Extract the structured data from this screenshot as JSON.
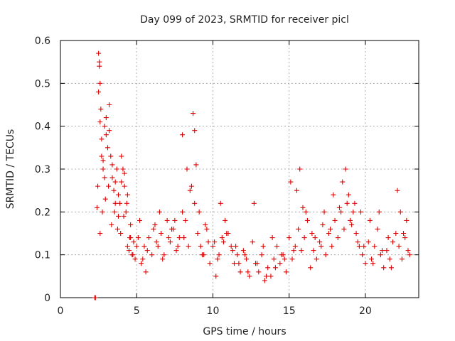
{
  "chart_data": {
    "type": "scatter",
    "title": "Day 099 of 2023, SRMTID for receiver picl",
    "xlabel": "GPS time / hours",
    "ylabel": "SRMTID / TECUs",
    "xlim": [
      0,
      23.5
    ],
    "ylim": [
      0,
      0.6
    ],
    "x_ticks": [
      0,
      5,
      10,
      15,
      20
    ],
    "x_tick_labels": [
      "0",
      "5",
      "10",
      "15",
      "20"
    ],
    "y_ticks": [
      0,
      0.1,
      0.2,
      0.3,
      0.4,
      0.5,
      0.6
    ],
    "y_tick_labels": [
      "0",
      "0.1",
      "0.2",
      "0.3",
      "0.4",
      "0.5",
      "0.6"
    ],
    "grid": true,
    "marker": "plus",
    "color": "#e00000",
    "series": [
      {
        "name": "SRMTID",
        "x": [
          2.25,
          2.3,
          2.4,
          2.45,
          2.5,
          2.55,
          2.6,
          2.65,
          2.7,
          2.8,
          2.9,
          3.0,
          3.1,
          3.2,
          3.3,
          3.4,
          3.5,
          3.6,
          3.7,
          3.8,
          3.9,
          4.0,
          4.1,
          4.2,
          4.3,
          4.4,
          4.5,
          4.6,
          4.7,
          4.8,
          4.9,
          5.0,
          5.2,
          5.4,
          5.6,
          5.8,
          6.0,
          6.2,
          6.4,
          6.6,
          6.8,
          7.0,
          7.2,
          7.4,
          7.6,
          7.8,
          8.0,
          8.2,
          8.4,
          8.6,
          8.8,
          9.0,
          9.2,
          9.4,
          9.6,
          9.8,
          10.0,
          10.2,
          10.4,
          10.6,
          10.8,
          11.0,
          11.2,
          11.4,
          11.6,
          11.8,
          12.0,
          12.2,
          12.4,
          12.6,
          12.8,
          13.0,
          13.2,
          13.4,
          13.6,
          13.8,
          14.0,
          14.2,
          14.4,
          14.6,
          14.8,
          15.0,
          15.2,
          15.4,
          15.6,
          15.8,
          16.0,
          16.2,
          16.4,
          16.6,
          16.8,
          17.0,
          17.2,
          17.4,
          17.6,
          17.8,
          18.0,
          18.2,
          18.4,
          18.6,
          18.8,
          19.0,
          19.2,
          19.4,
          19.6,
          19.8,
          20.0,
          20.2,
          20.4,
          20.6,
          20.8,
          21.0,
          21.2,
          21.4,
          21.6,
          21.8,
          22.0,
          22.2,
          22.4,
          22.6,
          22.8,
          2.5,
          2.55,
          2.6,
          2.7,
          2.8,
          2.9,
          3.0,
          3.2,
          3.4,
          3.6,
          3.8,
          4.0,
          4.2,
          4.4,
          4.6,
          5.1,
          5.5,
          6.1,
          6.5,
          7.1,
          7.5,
          8.0,
          8.3,
          8.5,
          8.7,
          8.8,
          9.1,
          9.5,
          10.1,
          10.5,
          10.9,
          11.5,
          12.1,
          12.7,
          13.3,
          13.9,
          14.5,
          15.1,
          15.5,
          15.7,
          16.1,
          16.7,
          17.3,
          17.9,
          18.5,
          18.7,
          18.9,
          19.3,
          19.7,
          20.3,
          20.9,
          21.5,
          22.1,
          22.3,
          22.5,
          22.9,
          2.6,
          2.75,
          2.95,
          3.15,
          3.35,
          3.55,
          3.75,
          3.95,
          4.15,
          4.35,
          4.55,
          4.75,
          5.3,
          5.7,
          6.3,
          6.7,
          7.3,
          7.7,
          8.1,
          8.9,
          9.3,
          9.7,
          10.3,
          10.7,
          11.3,
          11.7,
          12.3,
          12.9,
          13.5,
          14.1,
          14.7,
          15.3,
          15.9,
          16.5,
          17.1,
          17.7,
          18.3,
          19.1,
          19.5,
          19.9,
          20.5,
          21.1,
          21.7,
          22.7
        ],
        "y": [
          0.0,
          0.0,
          0.21,
          0.26,
          0.57,
          0.54,
          0.5,
          0.44,
          0.33,
          0.3,
          0.4,
          0.38,
          0.35,
          0.45,
          0.33,
          0.28,
          0.25,
          0.22,
          0.3,
          0.24,
          0.22,
          0.27,
          0.3,
          0.26,
          0.2,
          0.12,
          0.11,
          0.14,
          0.1,
          0.13,
          0.09,
          0.12,
          0.18,
          0.09,
          0.06,
          0.14,
          0.1,
          0.17,
          0.12,
          0.15,
          0.1,
          0.18,
          0.13,
          0.16,
          0.11,
          0.14,
          0.2,
          0.18,
          0.12,
          0.26,
          0.22,
          0.15,
          0.12,
          0.1,
          0.16,
          0.08,
          0.12,
          0.05,
          0.1,
          0.14,
          0.18,
          0.15,
          0.12,
          0.08,
          0.1,
          0.06,
          0.11,
          0.09,
          0.05,
          0.13,
          0.08,
          0.06,
          0.1,
          0.04,
          0.07,
          0.05,
          0.09,
          0.12,
          0.08,
          0.1,
          0.06,
          0.14,
          0.09,
          0.12,
          0.16,
          0.11,
          0.14,
          0.18,
          0.07,
          0.11,
          0.09,
          0.13,
          0.17,
          0.1,
          0.15,
          0.12,
          0.18,
          0.14,
          0.2,
          0.16,
          0.22,
          0.18,
          0.2,
          0.15,
          0.12,
          0.1,
          0.08,
          0.13,
          0.09,
          0.12,
          0.16,
          0.1,
          0.07,
          0.11,
          0.09,
          0.13,
          0.15,
          0.12,
          0.09,
          0.14,
          0.11,
          0.48,
          0.55,
          0.41,
          0.37,
          0.32,
          0.28,
          0.42,
          0.39,
          0.31,
          0.27,
          0.19,
          0.33,
          0.29,
          0.24,
          0.17,
          0.14,
          0.12,
          0.16,
          0.2,
          0.14,
          0.18,
          0.38,
          0.3,
          0.25,
          0.43,
          0.39,
          0.2,
          0.17,
          0.13,
          0.22,
          0.15,
          0.12,
          0.1,
          0.22,
          0.12,
          0.14,
          0.1,
          0.27,
          0.25,
          0.3,
          0.2,
          0.14,
          0.2,
          0.24,
          0.27,
          0.3,
          0.24,
          0.22,
          0.2,
          0.18,
          0.2,
          0.14,
          0.25,
          0.2,
          0.15,
          0.1,
          0.15,
          0.2,
          0.23,
          0.26,
          0.17,
          0.2,
          0.16,
          0.15,
          0.19,
          0.22,
          0.14,
          0.1,
          0.08,
          0.11,
          0.13,
          0.09,
          0.16,
          0.12,
          0.14,
          0.31,
          0.1,
          0.13,
          0.09,
          0.13,
          0.11,
          0.08,
          0.06,
          0.08,
          0.05,
          0.07,
          0.09,
          0.11,
          0.21,
          0.15,
          0.12,
          0.16,
          0.21,
          0.17,
          0.13,
          0.12,
          0.08,
          0.11,
          0.07,
          0.18
        ]
      }
    ]
  }
}
